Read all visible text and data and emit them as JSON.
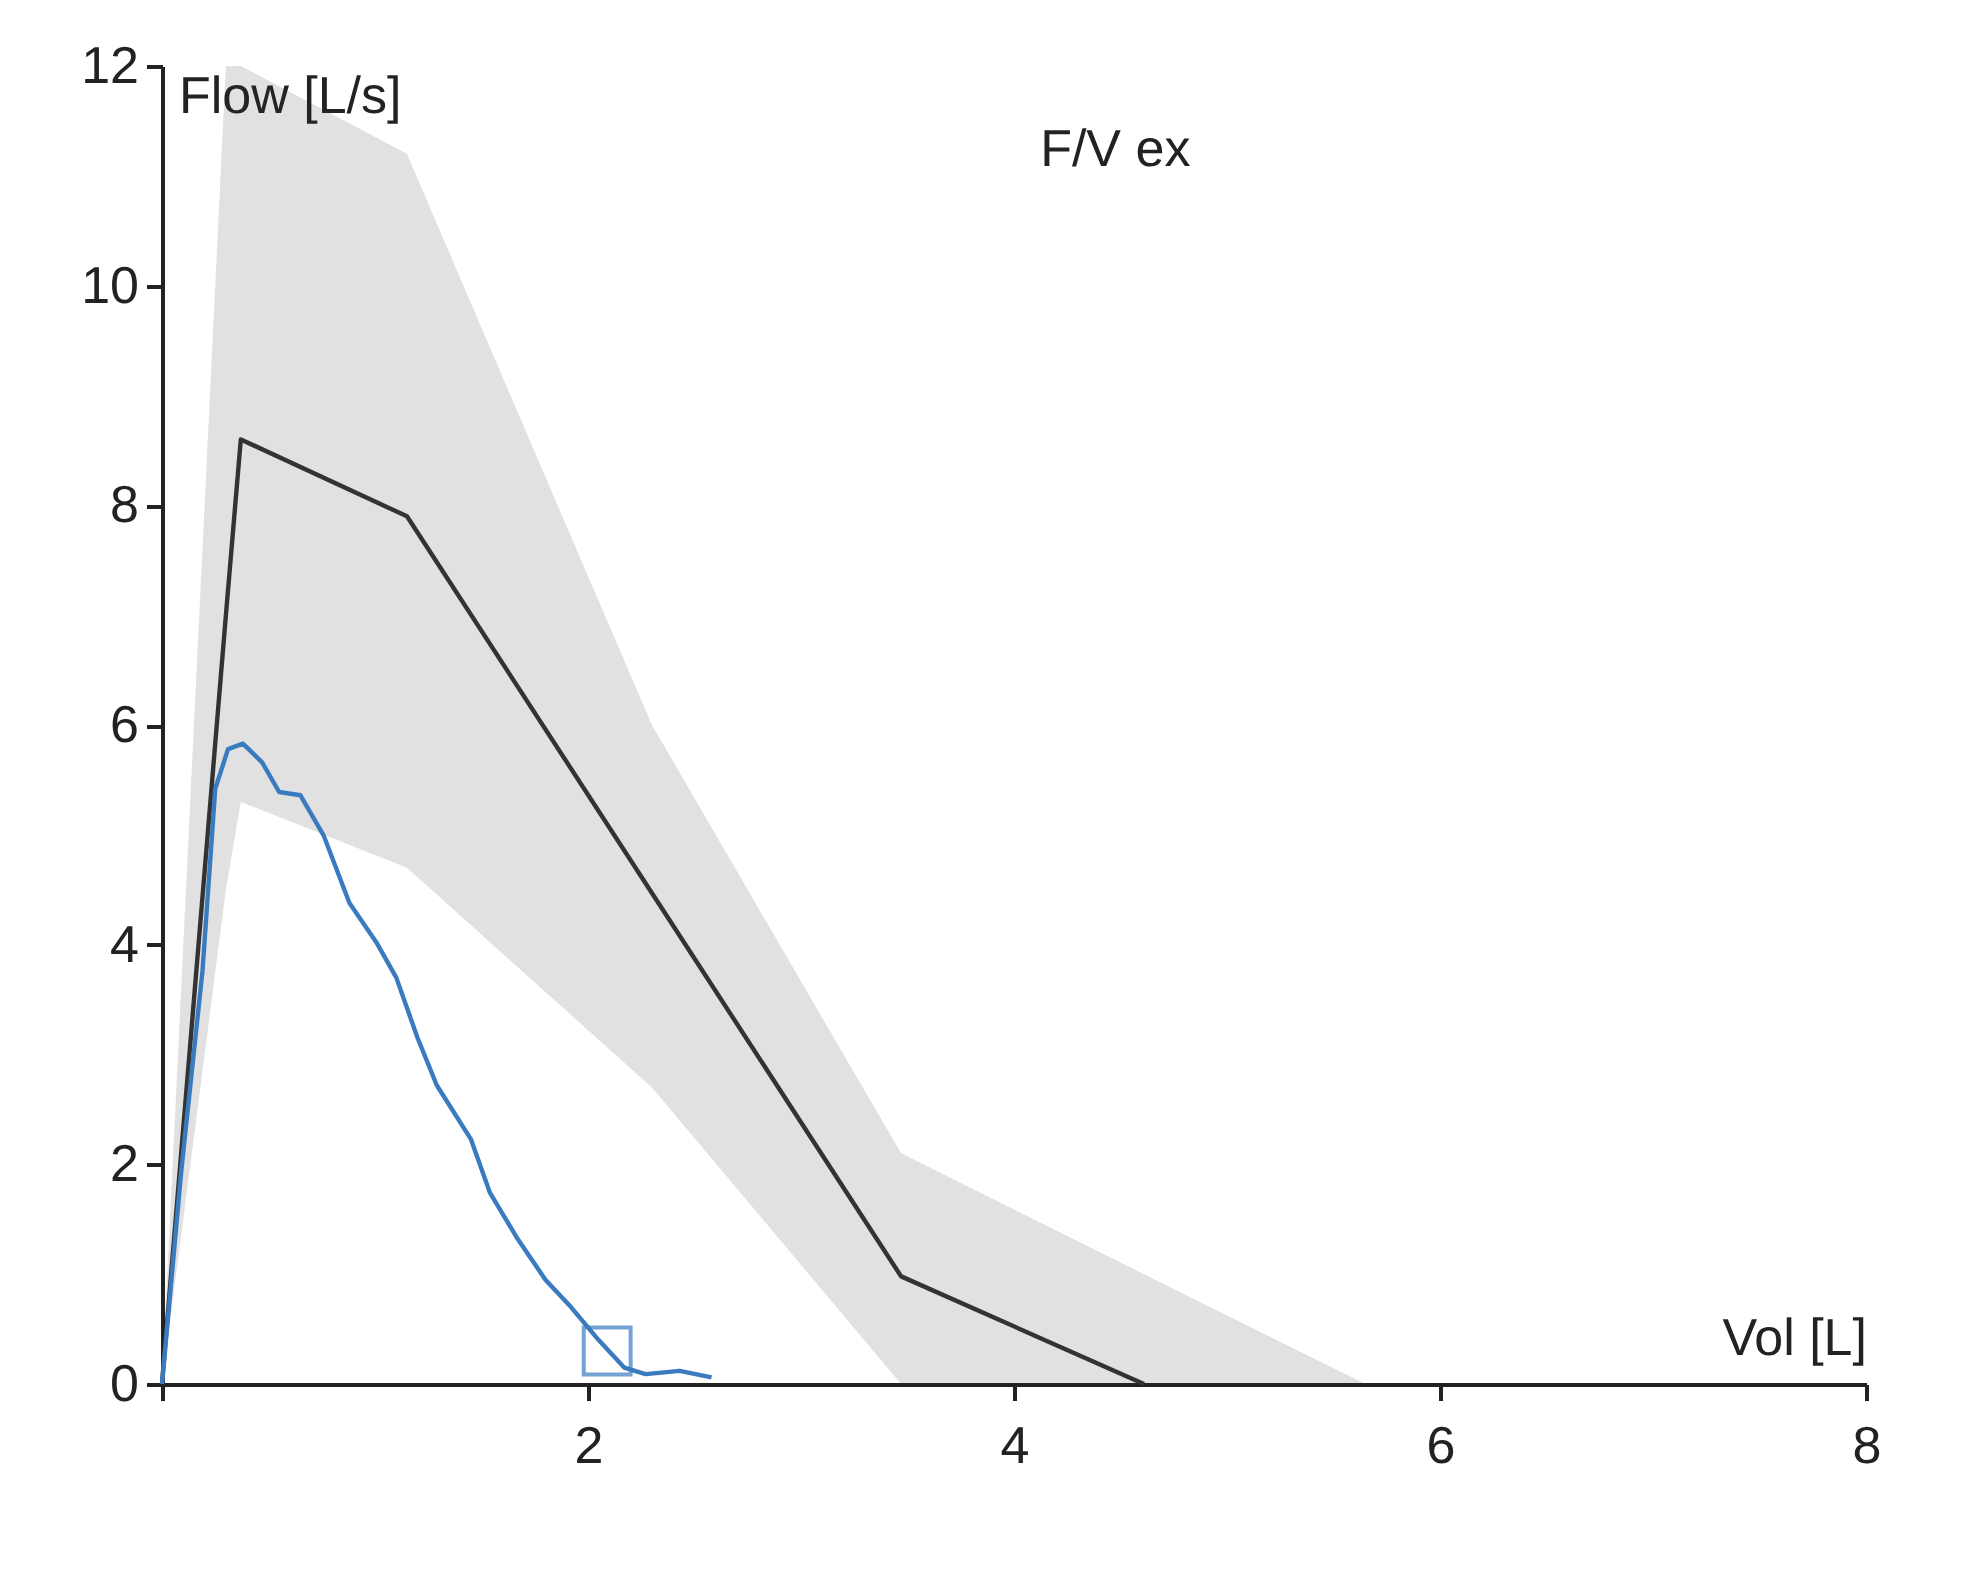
{
  "chart_data": {
    "type": "line",
    "title": "F/V ex",
    "xlabel": "Vol [L]",
    "ylabel": "Flow [L/s]",
    "xlim": [
      0,
      8
    ],
    "ylim": [
      0,
      12
    ],
    "xticks": [
      {
        "value": 0,
        "label": null
      },
      2,
      4,
      6,
      8
    ],
    "yticks": [
      0,
      2,
      4,
      6,
      8,
      10,
      12
    ],
    "grid": false,
    "line_style": "solid",
    "marker": "none",
    "series": [
      {
        "color": "#333333",
        "x": [
          0,
          0.3,
          0.37,
          1.15,
          2.3,
          3.47,
          4.61,
          5.65
        ],
        "values": [
          0,
          7.0,
          8.6,
          7.9,
          4.47,
          0.98,
          0,
          null
        ],
        "lower": [
          0,
          4.5,
          5.3,
          4.7,
          2.7,
          0,
          0,
          0
        ],
        "upper": [
          0,
          12,
          12,
          11.2,
          6.0,
          2.1,
          1.0,
          0
        ]
      },
      {
        "color": "#3a7bbf",
        "x": [
          0,
          0.09,
          0.19,
          0.25,
          0.31,
          0.38,
          0.47,
          0.55,
          0.65,
          0.76,
          0.88,
          1.01,
          1.1,
          1.2,
          1.29,
          1.45,
          1.54,
          1.67,
          1.8,
          1.92,
          2.05,
          2.17,
          2.27,
          2.43,
          2.58
        ],
        "values": [
          0,
          1.93,
          3.76,
          5.42,
          5.78,
          5.83,
          5.66,
          5.39,
          5.36,
          4.99,
          4.38,
          4.01,
          3.7,
          3.15,
          2.72,
          2.23,
          1.74,
          1.32,
          0.95,
          0.7,
          0.4,
          0.15,
          0.09,
          0.12,
          0.06
        ]
      },
      {
        "type": "scatter",
        "marker": "square",
        "color": "#3a7bbf",
        "x": [
          2.09
        ],
        "values": [
          0.3
        ]
      }
    ]
  }
}
